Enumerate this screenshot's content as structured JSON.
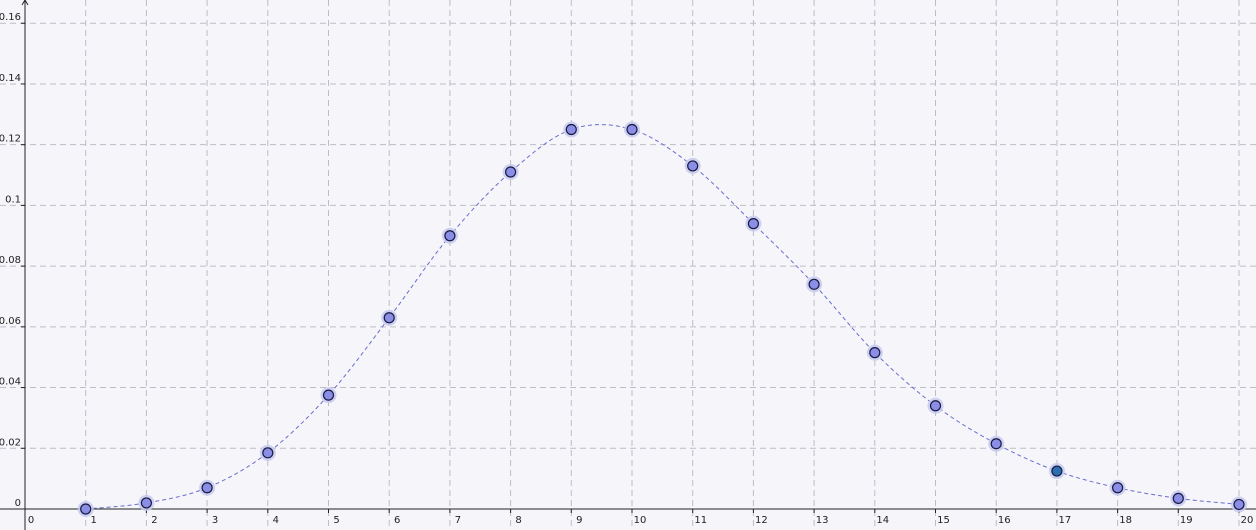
{
  "chart_data": {
    "type": "scatter",
    "title": "",
    "xlabel": "",
    "ylabel": "",
    "xlim": [
      0,
      20
    ],
    "ylim": [
      0,
      0.16
    ],
    "grid": true,
    "x_ticks": [
      "0",
      "1",
      "2",
      "3",
      "4",
      "5",
      "6",
      "7",
      "8",
      "9",
      "10",
      "11",
      "12",
      "13",
      "14",
      "15",
      "16",
      "17",
      "18",
      "19",
      "20"
    ],
    "y_ticks": [
      "0",
      "0.02",
      "0.04",
      "0.06",
      "0.08",
      "0.1",
      "0.12",
      "0.14",
      "0.16"
    ],
    "x": [
      1,
      2,
      3,
      4,
      5,
      6,
      7,
      8,
      9,
      10,
      11,
      12,
      13,
      14,
      15,
      16,
      17,
      18,
      19,
      20
    ],
    "y": [
      0.0,
      0.002,
      0.007,
      0.0185,
      0.0375,
      0.063,
      0.09,
      0.111,
      0.125,
      0.125,
      0.113,
      0.094,
      0.074,
      0.0515,
      0.034,
      0.0215,
      0.0125,
      0.007,
      0.0035,
      0.0015
    ],
    "highlighted_index": 16,
    "curve_style": "dashed smooth line",
    "colors": {
      "point_fill": "#8a8ee6",
      "point_highlight_fill": "#2a6fb0",
      "point_halo": "#c6c9ef",
      "curve": "#6a6ed0",
      "grid": "#bdbdc6",
      "axis": "#222222",
      "background": "#f5f5fa"
    }
  }
}
